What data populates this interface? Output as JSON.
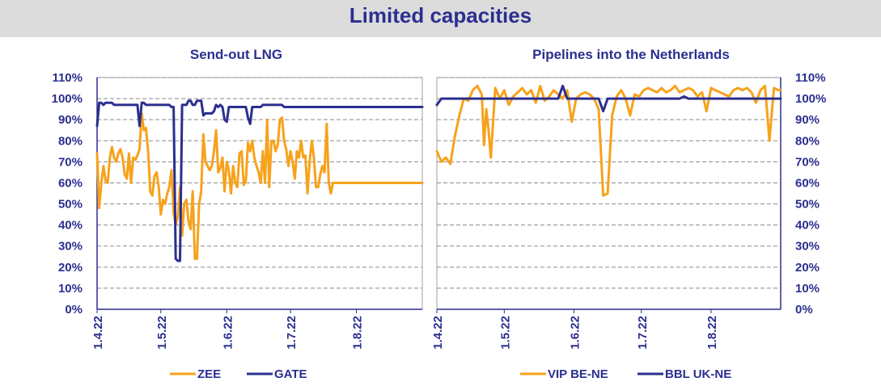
{
  "header": {
    "title": "Limited capacities"
  },
  "colors": {
    "orange": "#f7a21b",
    "navy": "#2b2f8f",
    "grid": "#8a8a8a",
    "banner": "#dcdcdc"
  },
  "chart_data": [
    {
      "type": "line",
      "title": "Send-out LNG",
      "ylim": [
        0,
        110
      ],
      "yticks": [
        "0%",
        "10%",
        "20%",
        "30%",
        "40%",
        "50%",
        "60%",
        "70%",
        "80%",
        "90%",
        "100%",
        "110%"
      ],
      "xlim": [
        0,
        153
      ],
      "xticks": [
        {
          "label": "1.4.22",
          "day": 0
        },
        {
          "label": "1.5.22",
          "day": 30
        },
        {
          "label": "1.6.22",
          "day": 61
        },
        {
          "label": "1.7.22",
          "day": 91
        },
        {
          "label": "1.8.22",
          "day": 122
        }
      ],
      "x_unit": "day index from 1.4.22",
      "grid": "horizontal dashed",
      "legend_position": "bottom",
      "series": [
        {
          "name": "ZEE",
          "color": "#f7a21b",
          "x": [
            0,
            1,
            2,
            3,
            4,
            5,
            6,
            7,
            8,
            9,
            10,
            11,
            12,
            13,
            14,
            15,
            16,
            17,
            18,
            19,
            20,
            21,
            22,
            23,
            24,
            25,
            26,
            27,
            28,
            29,
            30,
            31,
            32,
            33,
            34,
            35,
            36,
            37,
            38,
            39,
            40,
            41,
            42,
            43,
            44,
            45,
            46,
            47,
            48,
            49,
            50,
            51,
            52,
            53,
            54,
            55,
            56,
            57,
            58,
            59,
            60,
            61,
            62,
            63,
            64,
            65,
            66,
            67,
            68,
            69,
            70,
            71,
            72,
            73,
            74,
            75,
            76,
            77,
            78,
            79,
            80,
            81,
            82,
            83,
            84,
            85,
            86,
            87,
            88,
            89,
            90,
            91,
            92,
            93,
            94,
            95,
            96,
            97,
            98,
            99,
            100,
            101,
            102,
            103,
            104,
            105,
            106,
            107,
            108,
            109,
            110,
            111,
            112,
            113,
            114,
            115,
            116,
            117,
            118,
            119,
            120,
            121,
            122,
            123,
            124,
            125,
            126,
            127,
            128,
            129,
            130,
            131,
            132,
            133,
            134,
            135,
            136,
            137,
            138,
            139,
            140,
            141,
            142,
            143,
            144,
            145,
            146,
            147,
            148,
            149,
            150,
            151,
            152,
            153
          ],
          "values": [
            74,
            48,
            60,
            68,
            61,
            60,
            72,
            77,
            72,
            70,
            74,
            76,
            72,
            64,
            62,
            74,
            60,
            72,
            71,
            73,
            76,
            93,
            85,
            86,
            75,
            56,
            54,
            63,
            65,
            58,
            45,
            52,
            50,
            55,
            58,
            66,
            46,
            40,
            44,
            58,
            35,
            50,
            52,
            42,
            38,
            56,
            24,
            24,
            50,
            56,
            83,
            70,
            68,
            66,
            68,
            75,
            85,
            65,
            67,
            72,
            56,
            70,
            66,
            55,
            68,
            60,
            58,
            74,
            75,
            59,
            61,
            79,
            75,
            80,
            72,
            68,
            65,
            60,
            75,
            60,
            90,
            58,
            80,
            80,
            75,
            78,
            90,
            91,
            80,
            76,
            68,
            75,
            70,
            62,
            75,
            72,
            80,
            72,
            73,
            55,
            70,
            80,
            72,
            58,
            58,
            64,
            68,
            65,
            88,
            60,
            55,
            60,
            60,
            60,
            60,
            60,
            60,
            60,
            60,
            60,
            60,
            60,
            60,
            60,
            60,
            60,
            60,
            60,
            60,
            60,
            60,
            60,
            60,
            60,
            60,
            60,
            60,
            60,
            60,
            60,
            60,
            60,
            60,
            60,
            60,
            60,
            60,
            60,
            60,
            60,
            60,
            60,
            60,
            60
          ]
        },
        {
          "name": "GATE",
          "color": "#2b2f8f",
          "x": [
            0,
            1,
            2,
            3,
            4,
            5,
            6,
            7,
            8,
            9,
            10,
            11,
            12,
            13,
            14,
            15,
            16,
            17,
            18,
            19,
            20,
            21,
            22,
            23,
            24,
            25,
            26,
            27,
            28,
            29,
            30,
            31,
            32,
            33,
            34,
            35,
            36,
            37,
            38,
            39,
            40,
            41,
            42,
            43,
            44,
            45,
            46,
            47,
            48,
            49,
            50,
            51,
            52,
            53,
            54,
            55,
            56,
            57,
            58,
            59,
            60,
            61,
            62,
            63,
            64,
            65,
            66,
            67,
            68,
            69,
            70,
            71,
            72,
            73,
            74,
            75,
            76,
            77,
            78,
            79,
            80,
            81,
            82,
            83,
            84,
            85,
            86,
            87,
            88,
            89,
            90,
            91,
            92,
            93,
            94,
            95,
            96,
            97,
            98,
            99,
            100,
            101,
            102,
            103,
            104,
            105,
            106,
            107,
            108,
            109,
            110,
            111,
            112,
            113,
            114,
            115,
            116,
            117,
            118,
            119,
            120,
            121,
            122,
            123,
            124,
            125,
            126,
            127,
            128,
            129,
            130,
            131,
            132,
            133,
            134,
            135,
            136,
            137,
            138,
            139,
            140,
            141,
            142,
            143,
            144,
            145,
            146,
            147,
            148,
            149,
            150,
            151,
            152,
            153
          ],
          "values": [
            87,
            98,
            98,
            97,
            98,
            98,
            98,
            98,
            97,
            97,
            97,
            97,
            97,
            97,
            97,
            97,
            97,
            97,
            97,
            97,
            87,
            98,
            98,
            97,
            97,
            97,
            97,
            97,
            97,
            97,
            97,
            97,
            97,
            97,
            97,
            96,
            96,
            24,
            23,
            23,
            97,
            97,
            97,
            99,
            99,
            97,
            97,
            99,
            99,
            99,
            92,
            93,
            93,
            93,
            93,
            94,
            97,
            96,
            97,
            96,
            90,
            89,
            96,
            96,
            96,
            96,
            96,
            96,
            96,
            96,
            96,
            91,
            88,
            96,
            96,
            96,
            96,
            96,
            97,
            97,
            97,
            97,
            97,
            97,
            97,
            97,
            97,
            97,
            96,
            96,
            96,
            96,
            96,
            96,
            96,
            96,
            96,
            96,
            96,
            96,
            96,
            96,
            96,
            96,
            96,
            96,
            96,
            96,
            96,
            96,
            96,
            96,
            96,
            96,
            96,
            96,
            96,
            96,
            96,
            96,
            96,
            96,
            96,
            96,
            96,
            96,
            96,
            96,
            96,
            96,
            96,
            96,
            96,
            96,
            96,
            96,
            96,
            96,
            96,
            96,
            96,
            96,
            96,
            96,
            96,
            96,
            96,
            96,
            96,
            96,
            96,
            96,
            96,
            96
          ]
        }
      ]
    },
    {
      "type": "line",
      "title": "Pipelines into the Netherlands",
      "ylim": [
        0,
        110
      ],
      "yticks": [
        "0%",
        "10%",
        "20%",
        "30%",
        "40%",
        "50%",
        "60%",
        "70%",
        "80%",
        "90%",
        "100%",
        "110%"
      ],
      "xlim": [
        0,
        153
      ],
      "xticks": [
        {
          "label": "1.4.22",
          "day": 0
        },
        {
          "label": "1.5.22",
          "day": 30
        },
        {
          "label": "1.6.22",
          "day": 61
        },
        {
          "label": "1.7.22",
          "day": 91
        },
        {
          "label": "1.8.22",
          "day": 122
        }
      ],
      "x_unit": "day index from 1.4.22",
      "grid": "horizontal dashed",
      "legend_position": "bottom",
      "series": [
        {
          "name": "VIP BE-NE",
          "color": "#f7a21b",
          "x": [
            0,
            2,
            4,
            6,
            8,
            10,
            12,
            14,
            16,
            18,
            20,
            21,
            22,
            23,
            24,
            26,
            28,
            30,
            32,
            34,
            36,
            38,
            40,
            42,
            44,
            46,
            48,
            50,
            52,
            54,
            56,
            58,
            60,
            62,
            64,
            66,
            68,
            70,
            72,
            74,
            76,
            78,
            80,
            82,
            84,
            86,
            88,
            90,
            92,
            94,
            96,
            98,
            100,
            102,
            104,
            106,
            108,
            110,
            112,
            114,
            116,
            118,
            120,
            122,
            124,
            126,
            128,
            130,
            132,
            134,
            136,
            138,
            140,
            142,
            144,
            146,
            148,
            150,
            152,
            153
          ],
          "values": [
            75,
            70,
            72,
            69,
            82,
            92,
            100,
            99,
            104,
            106,
            102,
            78,
            95,
            85,
            72,
            105,
            100,
            104,
            97,
            101,
            103,
            105,
            102,
            104,
            98,
            106,
            99,
            101,
            104,
            102,
            100,
            104,
            89,
            100,
            102,
            103,
            102,
            100,
            95,
            54,
            55,
            92,
            101,
            104,
            100,
            92,
            102,
            101,
            104,
            105,
            104,
            103,
            105,
            103,
            104,
            106,
            103,
            104,
            105,
            104,
            101,
            103,
            94,
            105,
            104,
            103,
            102,
            101,
            104,
            105,
            104,
            105,
            103,
            98,
            104,
            106,
            80,
            105,
            104,
            104
          ]
        },
        {
          "name": "BBL UK-NE",
          "color": "#2b2f8f",
          "x": [
            0,
            2,
            4,
            6,
            8,
            10,
            12,
            14,
            16,
            18,
            20,
            22,
            24,
            26,
            28,
            30,
            32,
            34,
            36,
            38,
            40,
            42,
            44,
            46,
            48,
            50,
            52,
            54,
            56,
            58,
            60,
            62,
            64,
            66,
            68,
            70,
            72,
            74,
            76,
            78,
            80,
            82,
            84,
            86,
            88,
            90,
            92,
            94,
            96,
            98,
            100,
            102,
            104,
            106,
            108,
            110,
            112,
            114,
            116,
            118,
            120,
            122,
            124,
            126,
            128,
            130,
            132,
            134,
            136,
            138,
            140,
            142,
            144,
            146,
            148,
            150,
            152,
            153
          ],
          "values": [
            97,
            100,
            100,
            100,
            100,
            100,
            100,
            100,
            100,
            100,
            100,
            100,
            100,
            100,
            100,
            100,
            100,
            100,
            100,
            100,
            100,
            100,
            100,
            100,
            100,
            100,
            100,
            100,
            106,
            100,
            100,
            100,
            100,
            100,
            100,
            100,
            100,
            94,
            100,
            100,
            100,
            100,
            100,
            100,
            100,
            100,
            100,
            100,
            100,
            100,
            100,
            100,
            100,
            100,
            100,
            101,
            100,
            100,
            100,
            100,
            100,
            100,
            100,
            100,
            100,
            100,
            100,
            100,
            100,
            100,
            100,
            100,
            100,
            100,
            100,
            100,
            100,
            100
          ]
        }
      ]
    }
  ]
}
